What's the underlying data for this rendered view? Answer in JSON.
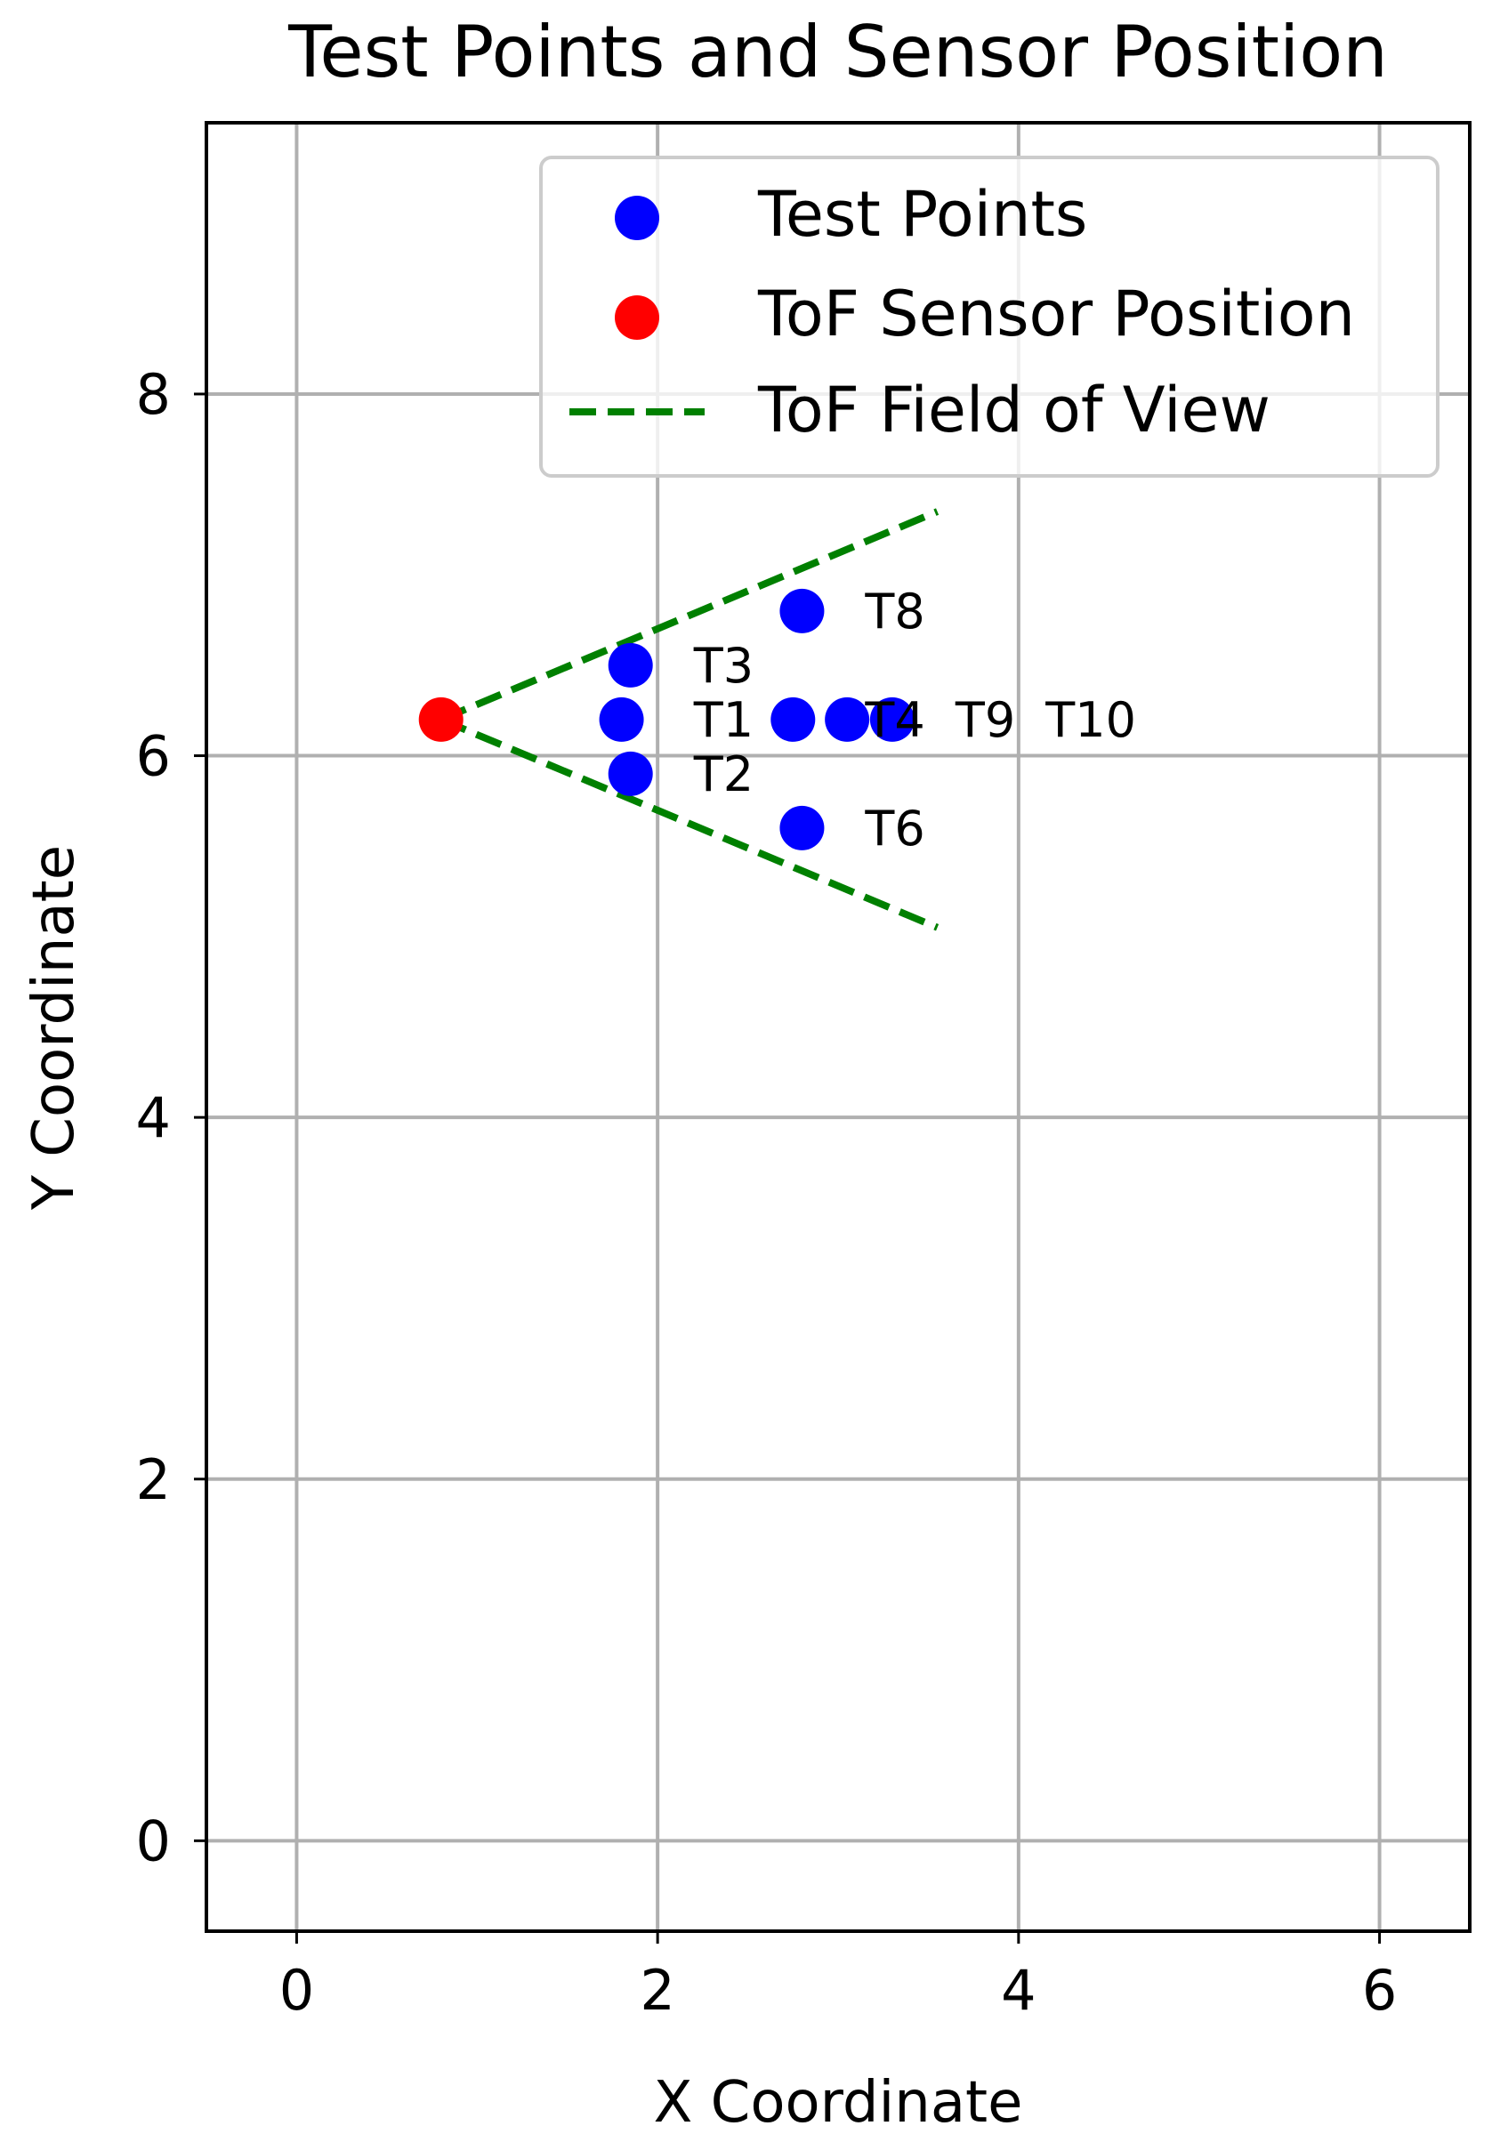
{
  "chart_data": {
    "type": "scatter",
    "title": "Test Points and Sensor Position",
    "xlabel": "X Coordinate",
    "ylabel": "Y Coordinate",
    "xlim": [
      -0.5,
      6.5
    ],
    "ylim": [
      -0.5,
      9.5
    ],
    "xticks": [
      0,
      2,
      4,
      6
    ],
    "yticks": [
      0,
      2,
      4,
      6,
      8
    ],
    "xtick_labels": [
      "0",
      "2",
      "4",
      "6"
    ],
    "ytick_labels": [
      "0",
      "2",
      "4",
      "6",
      "8"
    ],
    "grid": true,
    "legend_position": "top-right",
    "series": [
      {
        "name": "Test Points",
        "kind": "scatter",
        "color": "#0000ff",
        "points": [
          {
            "label": "T1",
            "x": 1.8,
            "y": 6.2
          },
          {
            "label": "T2",
            "x": 1.85,
            "y": 5.9
          },
          {
            "label": "T3",
            "x": 1.85,
            "y": 6.5
          },
          {
            "label": "T4",
            "x": 2.75,
            "y": 6.2
          },
          {
            "label": "T9",
            "x": 3.05,
            "y": 6.2
          },
          {
            "label": "T10",
            "x": 3.3,
            "y": 6.2
          },
          {
            "label": "T6",
            "x": 2.8,
            "y": 5.6
          },
          {
            "label": "T8",
            "x": 2.8,
            "y": 6.8
          }
        ]
      },
      {
        "name": "ToF Sensor Position",
        "kind": "scatter",
        "color": "#ff0000",
        "points": [
          {
            "label": "",
            "x": 0.8,
            "y": 6.2
          }
        ]
      },
      {
        "name": "ToF Field of View",
        "kind": "line",
        "style": "dashed",
        "color": "#008000",
        "segments": [
          [
            {
              "x": 0.8,
              "y": 6.2
            },
            {
              "x": 3.55,
              "y": 7.35
            }
          ],
          [
            {
              "x": 0.8,
              "y": 6.2
            },
            {
              "x": 3.55,
              "y": 5.05
            }
          ]
        ]
      }
    ],
    "point_labels": [
      {
        "text": "T1",
        "x": 2.2,
        "y": 6.2
      },
      {
        "text": "T2",
        "x": 2.2,
        "y": 5.9
      },
      {
        "text": "T3",
        "x": 2.2,
        "y": 6.5
      },
      {
        "text": "T4",
        "x": 3.15,
        "y": 6.2
      },
      {
        "text": "T9",
        "x": 3.65,
        "y": 6.2
      },
      {
        "text": "T10",
        "x": 4.15,
        "y": 6.2
      },
      {
        "text": "T6",
        "x": 3.15,
        "y": 5.6
      },
      {
        "text": "T8",
        "x": 3.15,
        "y": 6.8
      }
    ]
  }
}
